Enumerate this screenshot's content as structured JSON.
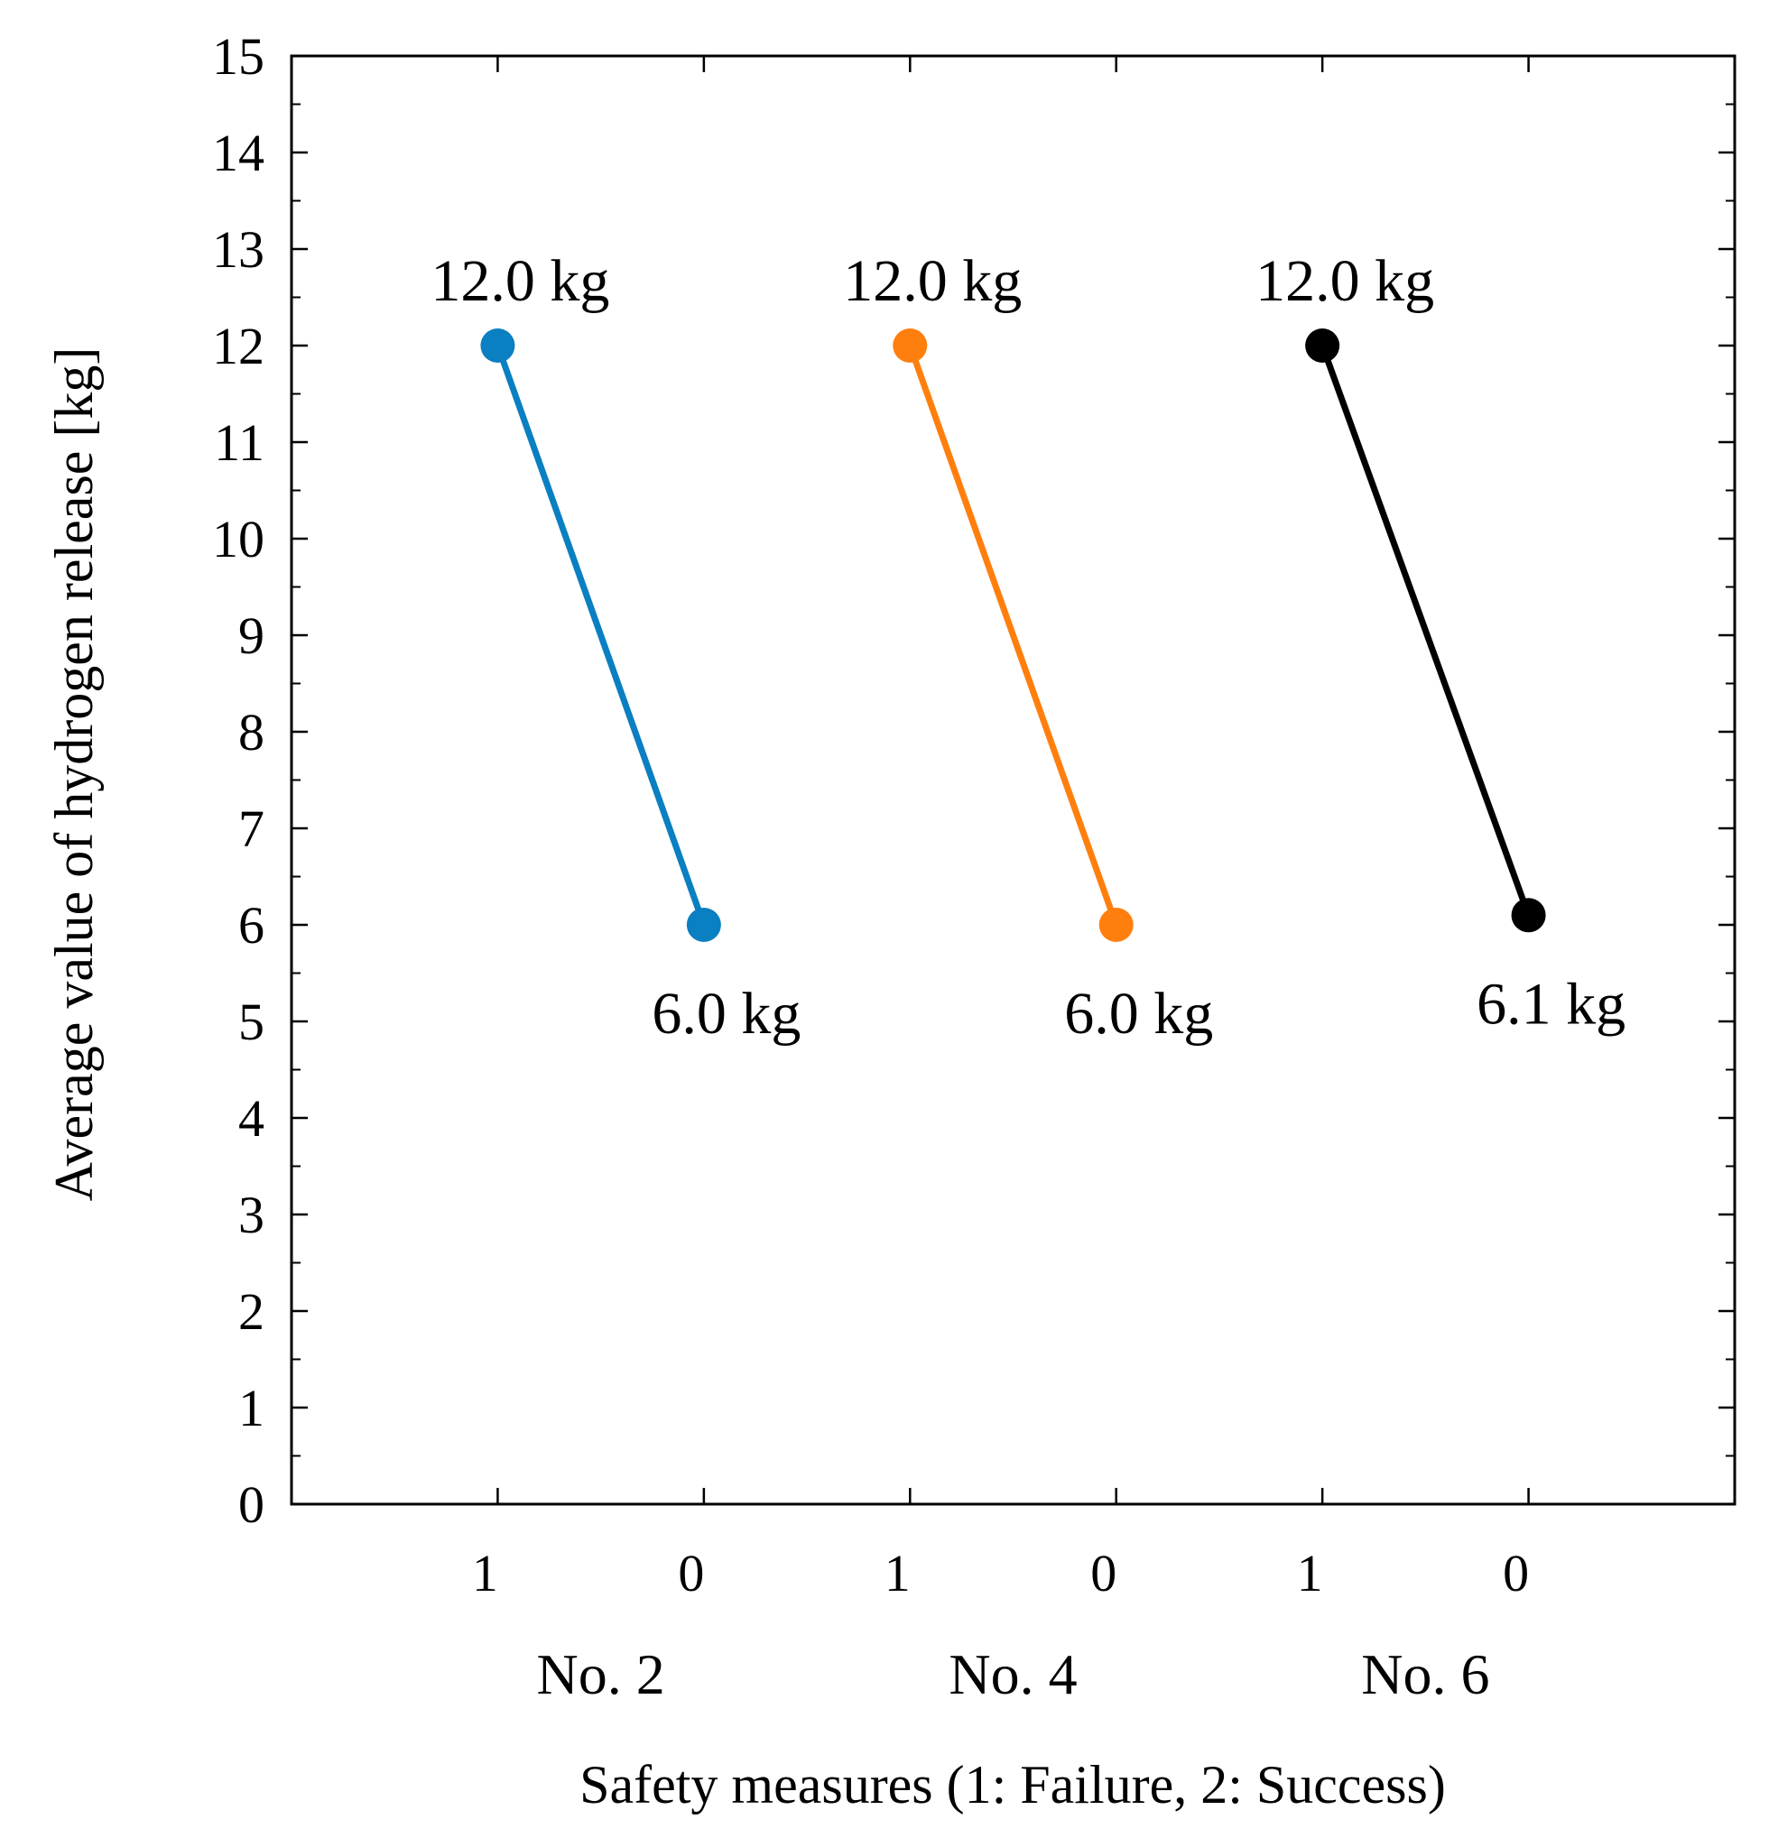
{
  "chart_data": {
    "type": "line",
    "title": "",
    "ylabel": "Average value of hydrogen release [kg]",
    "xlabel": "Safety measures (1: Failure, 2: Success)",
    "ylim": [
      0,
      15
    ],
    "y_major_ticks": [
      0,
      1,
      2,
      3,
      4,
      5,
      6,
      7,
      8,
      9,
      10,
      11,
      12,
      13,
      14,
      15
    ],
    "grid": false,
    "x_tick_labels": [
      "1",
      "0",
      "1",
      "0",
      "1",
      "0"
    ],
    "groups": [
      "No. 2",
      "No. 4",
      "No. 6"
    ],
    "series": [
      {
        "name": "No. 2",
        "color": "#0a7fc1",
        "x_positions": [
          1,
          2
        ],
        "x": [
          "1",
          "0"
        ],
        "values": [
          12.0,
          6.0
        ],
        "labels": [
          "12.0 kg",
          "6.0 kg"
        ]
      },
      {
        "name": "No. 4",
        "color": "#ff7f0e",
        "x_positions": [
          3,
          4
        ],
        "x": [
          "1",
          "0"
        ],
        "values": [
          12.0,
          6.0
        ],
        "labels": [
          "12.0 kg",
          "6.0 kg"
        ]
      },
      {
        "name": "No. 6",
        "color": "#000000",
        "x_positions": [
          5,
          6
        ],
        "x": [
          "1",
          "0"
        ],
        "values": [
          12.0,
          6.1
        ],
        "labels": [
          "12.0 kg",
          "6.1 kg"
        ]
      }
    ]
  }
}
